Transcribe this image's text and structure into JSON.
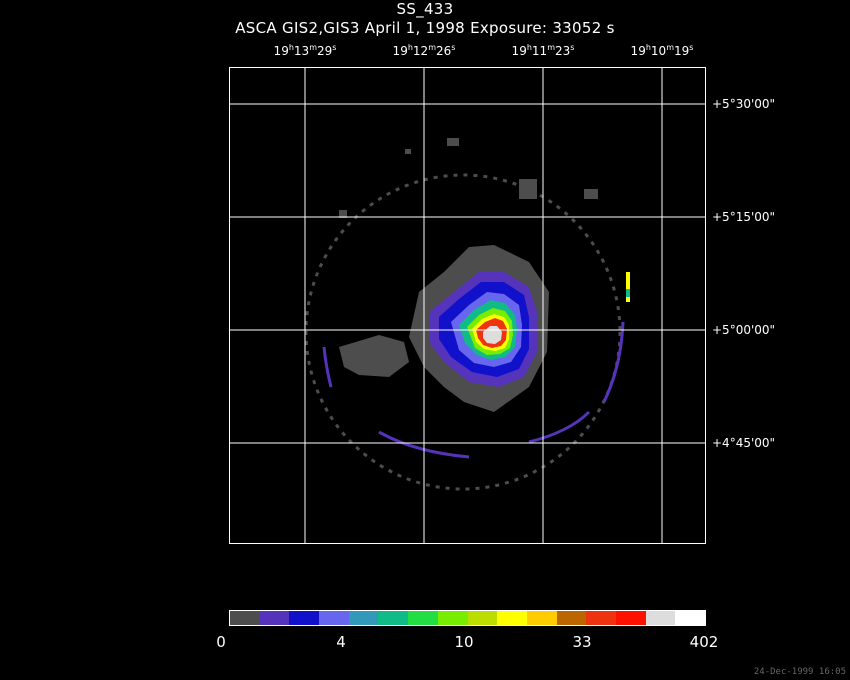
{
  "title": "SS_433",
  "subtitle": "ASCA GIS2,GIS3 April 1, 1998 Exposure: 33052 s",
  "ra_labels": [
    {
      "h": "19",
      "m": "13",
      "s": "29"
    },
    {
      "h": "19",
      "m": "12",
      "s": "26"
    },
    {
      "h": "19",
      "m": "11",
      "s": "23"
    },
    {
      "h": "19",
      "m": "10",
      "s": "19"
    }
  ],
  "dec_labels": [
    "+5°30'00\"",
    "+5°15'00\"",
    "+5°00'00\"",
    "+4°45'00\""
  ],
  "colorbar": {
    "colors": [
      "#4d4d4d",
      "#5533bb",
      "#1111cc",
      "#6666ee",
      "#3399bb",
      "#11bb88",
      "#22dd44",
      "#77ee00",
      "#bbdd00",
      "#ffff00",
      "#ffcc00",
      "#bb6600",
      "#ee3311",
      "#ff1100",
      "#dddddd",
      "#ffffff"
    ],
    "labels": [
      "0",
      "4",
      "10",
      "33",
      "402"
    ]
  },
  "timestamp": "24-Dec-1999 16:05"
}
